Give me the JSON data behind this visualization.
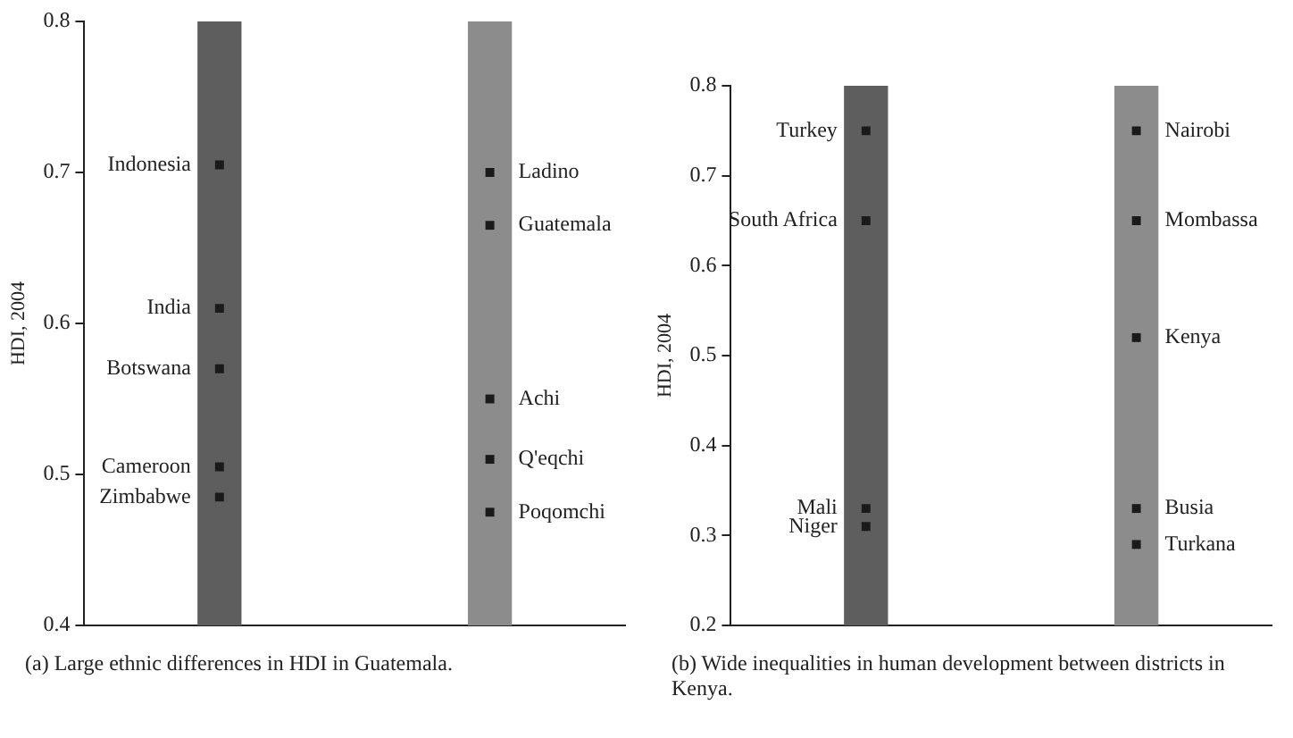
{
  "chart_data": [
    {
      "type": "scatter",
      "ylabel": "HDI, 2004",
      "categories": [
        null,
        null
      ],
      "ylim": [
        0.4,
        0.8
      ],
      "yticks": [
        0.4,
        0.5,
        0.6,
        0.7,
        0.8
      ],
      "tick_labels": "y",
      "grid": false,
      "legend": false,
      "marker": "square",
      "annotations": [
        "(a) Large ethnic differences in HDI in Guatemala."
      ],
      "series": [
        {
          "type": "bar",
          "colors": [
            "#5e5e5e",
            "#8c8c8c"
          ],
          "values": [
            0.8,
            0.8
          ]
        },
        {
          "color": "#1a1a1a",
          "values": [
            0.705,
            null
          ],
          "value_labels": [
            "Indonesia",
            null
          ]
        },
        {
          "color": "#1a1a1a",
          "values": [
            0.61,
            null
          ],
          "value_labels": [
            "India",
            null
          ]
        },
        {
          "color": "#1a1a1a",
          "values": [
            0.57,
            null
          ],
          "value_labels": [
            "Botswana",
            null
          ]
        },
        {
          "color": "#1a1a1a",
          "values": [
            0.505,
            null
          ],
          "value_labels": [
            "Cameroon",
            null
          ]
        },
        {
          "color": "#1a1a1a",
          "values": [
            0.485,
            null
          ],
          "value_labels": [
            "Zimbabwe",
            null
          ]
        },
        {
          "color": "#1a1a1a",
          "values": [
            null,
            0.7
          ],
          "value_labels": [
            null,
            "Ladino"
          ]
        },
        {
          "color": "#1a1a1a",
          "values": [
            null,
            0.665
          ],
          "value_labels": [
            null,
            "Guatemala"
          ]
        },
        {
          "color": "#1a1a1a",
          "values": [
            null,
            0.55
          ],
          "value_labels": [
            null,
            "Achi"
          ]
        },
        {
          "color": "#1a1a1a",
          "values": [
            null,
            0.51
          ],
          "value_labels": [
            null,
            "Q'eqchi"
          ]
        },
        {
          "color": "#1a1a1a",
          "values": [
            null,
            0.475
          ],
          "value_labels": [
            null,
            "Poqomchi"
          ]
        }
      ]
    },
    {
      "type": "scatter",
      "ylabel": "HDI, 2004",
      "categories": [
        null,
        null
      ],
      "ylim": [
        0.2,
        0.8
      ],
      "yticks": [
        0.2,
        0.3,
        0.4,
        0.5,
        0.6,
        0.7,
        0.8
      ],
      "tick_labels": "y",
      "grid": false,
      "legend": false,
      "marker": "square",
      "annotations": [
        "(b) Wide inequalities in human development between districts in Kenya."
      ],
      "series": [
        {
          "type": "bar",
          "colors": [
            "#5e5e5e",
            "#8c8c8c"
          ],
          "values": [
            0.8,
            0.8
          ]
        },
        {
          "color": "#1a1a1a",
          "values": [
            0.75,
            null
          ],
          "value_labels": [
            "Turkey",
            null
          ]
        },
        {
          "color": "#1a1a1a",
          "values": [
            0.65,
            null
          ],
          "value_labels": [
            "South Africa",
            null
          ]
        },
        {
          "color": "#1a1a1a",
          "values": [
            0.33,
            null
          ],
          "value_labels": [
            "Mali",
            null
          ]
        },
        {
          "color": "#1a1a1a",
          "values": [
            0.31,
            null
          ],
          "value_labels": [
            "Niger",
            null
          ]
        },
        {
          "color": "#1a1a1a",
          "values": [
            null,
            0.75
          ],
          "value_labels": [
            null,
            "Nairobi"
          ]
        },
        {
          "color": "#1a1a1a",
          "values": [
            null,
            0.65
          ],
          "value_labels": [
            null,
            "Mombassa"
          ]
        },
        {
          "color": "#1a1a1a",
          "values": [
            null,
            0.52
          ],
          "value_labels": [
            null,
            "Kenya"
          ]
        },
        {
          "color": "#1a1a1a",
          "values": [
            null,
            0.33
          ],
          "value_labels": [
            null,
            "Busia"
          ]
        },
        {
          "color": "#1a1a1a",
          "values": [
            null,
            0.29
          ],
          "value_labels": [
            null,
            "Turkana"
          ]
        }
      ]
    }
  ]
}
